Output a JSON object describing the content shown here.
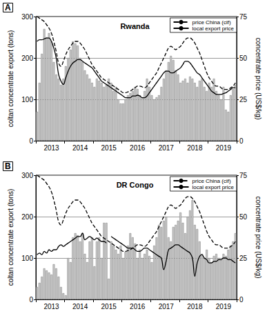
{
  "chart_data": [
    {
      "type": "bar",
      "title": "Rwanda",
      "annotations": [
        "A"
      ],
      "categories": [
        null,
        null,
        null,
        null,
        null,
        null,
        "2013",
        null,
        null,
        null,
        null,
        null,
        null,
        null,
        null,
        null,
        null,
        null,
        "2014",
        null,
        null,
        null,
        null,
        null,
        null,
        null,
        null,
        null,
        null,
        null,
        "2015",
        null,
        null,
        null,
        null,
        null,
        null,
        null,
        null,
        null,
        null,
        null,
        "2016",
        null,
        null,
        null,
        null,
        null,
        null,
        null,
        null,
        null,
        null,
        null,
        "2017",
        null,
        null,
        null,
        null,
        null,
        null,
        null,
        null,
        null,
        null,
        null,
        "2018",
        null,
        null,
        null,
        null,
        null,
        null,
        null,
        null,
        null,
        null,
        null,
        "2019",
        null,
        null,
        null,
        null,
        null
      ],
      "ylabel": "coltan concentrate export (tons)",
      "y2label": "concentrate price (US$/kg)",
      "ylim": [
        0,
        300
      ],
      "yticks": [
        0,
        100,
        200,
        300
      ],
      "y2lim": [
        0,
        75
      ],
      "y2ticks": [
        0,
        25,
        50,
        75
      ],
      "grid": true,
      "legend": "upper right",
      "series": [
        {
          "type": "bar",
          "color": "#c8c8c8",
          "values": [
            70,
            140,
            210,
            270,
            250,
            260,
            240,
            190,
            160,
            150,
            135,
            150,
            180,
            200,
            220,
            240,
            235,
            230,
            200,
            190,
            170,
            160,
            150,
            140,
            130,
            150,
            145,
            140,
            130,
            135,
            150,
            140,
            120,
            130,
            100,
            90,
            90,
            100,
            110,
            115,
            120,
            130,
            125,
            110,
            105,
            120,
            150,
            130,
            110,
            100,
            105,
            110,
            130,
            150,
            170,
            190,
            205,
            195,
            170,
            160,
            140,
            145,
            150,
            140,
            155,
            150,
            140,
            130,
            145,
            150,
            130,
            120,
            140,
            130,
            150,
            120,
            110,
            100,
            130,
            75,
            70,
            110,
            125,
            135
          ]
        },
        {
          "name": "price China (cif)",
          "type": "line",
          "axis": "y2",
          "line_style": "dashed",
          "color": "#000000",
          "values": [
            75,
            74,
            73,
            72,
            70,
            68,
            65,
            60,
            54,
            47,
            45,
            48,
            52,
            55,
            57,
            59,
            60,
            60,
            59,
            57,
            55,
            52,
            49,
            46,
            44,
            42,
            40,
            38,
            37,
            36,
            35,
            34,
            33,
            32,
            31,
            30,
            29,
            29,
            29.5,
            30,
            31,
            32,
            33,
            33,
            32.5,
            32,
            33,
            35,
            37,
            39,
            41,
            44,
            47,
            50,
            53,
            56,
            57,
            56,
            55,
            56,
            57,
            59,
            61,
            62,
            62,
            61,
            59,
            56,
            53,
            49,
            45,
            41,
            38,
            36,
            34,
            33,
            33,
            32,
            31,
            31,
            31,
            32,
            33,
            35
          ]
        },
        {
          "name": "local export price",
          "type": "line",
          "axis": "y2",
          "line_style": "solid",
          "color": "#000000",
          "values": [
            60,
            61,
            61,
            61.5,
            62,
            62,
            60,
            56,
            50,
            40,
            36,
            34,
            38,
            42,
            45,
            47,
            48,
            49,
            49,
            48,
            47,
            46,
            45,
            44,
            42,
            40,
            38,
            36,
            35,
            34,
            33,
            32,
            31,
            30,
            29,
            28,
            27,
            26,
            26,
            26,
            27,
            27,
            27.5,
            27,
            26,
            26,
            27,
            29,
            31,
            33,
            35,
            37,
            39,
            41,
            42,
            42,
            41,
            41,
            42,
            43,
            44,
            46,
            48,
            48,
            47,
            45,
            43,
            41,
            40,
            38,
            36,
            34,
            32,
            30,
            29,
            28,
            28,
            28,
            28.5,
            29,
            30,
            31,
            32,
            32
          ]
        }
      ]
    },
    {
      "type": "bar",
      "title": "DR Congo",
      "annotations": [
        "B"
      ],
      "categories": [
        null,
        null,
        null,
        null,
        null,
        null,
        "2013",
        null,
        null,
        null,
        null,
        null,
        null,
        null,
        null,
        null,
        null,
        null,
        "2014",
        null,
        null,
        null,
        null,
        null,
        null,
        null,
        null,
        null,
        null,
        null,
        "2015",
        null,
        null,
        null,
        null,
        null,
        null,
        null,
        null,
        null,
        null,
        null,
        "2016",
        null,
        null,
        null,
        null,
        null,
        null,
        null,
        null,
        null,
        null,
        null,
        "2017",
        null,
        null,
        null,
        null,
        null,
        null,
        null,
        null,
        null,
        null,
        null,
        "2018",
        null,
        null,
        null,
        null,
        null,
        null,
        null,
        null,
        null,
        null,
        null,
        "2019",
        null,
        null,
        null,
        null,
        null
      ],
      "ylabel": "coltan concentrate export (tons)",
      "y2label": "concentrate price (US$/kg)",
      "ylim": [
        0,
        300
      ],
      "yticks": [
        0,
        100,
        200,
        300
      ],
      "y2lim": [
        0,
        75
      ],
      "y2ticks": [
        0,
        25,
        50,
        75
      ],
      "grid": true,
      "legend": "upper right",
      "series": [
        {
          "type": "bar",
          "color": "#c8c8c8",
          "values": [
            30,
            40,
            55,
            75,
            70,
            65,
            60,
            85,
            75,
            55,
            30,
            15,
            10,
            100,
            90,
            150,
            160,
            155,
            140,
            160,
            110,
            90,
            140,
            150,
            80,
            140,
            150,
            100,
            185,
            185,
            50,
            140,
            130,
            120,
            110,
            130,
            100,
            115,
            130,
            160,
            150,
            135,
            100,
            120,
            100,
            110,
            120,
            105,
            90,
            130,
            150,
            180,
            175,
            190,
            200,
            150,
            140,
            175,
            180,
            190,
            210,
            185,
            160,
            200,
            215,
            240,
            180,
            170,
            140,
            110,
            100,
            120,
            100,
            90,
            105,
            110,
            100,
            95,
            110,
            105,
            120,
            130,
            140,
            160
          ]
        },
        {
          "name": "price China (cif)",
          "type": "line",
          "axis": "y2",
          "line_style": "dashed",
          "color": "#000000",
          "values": [
            75,
            74,
            73,
            72,
            70,
            68,
            65,
            60,
            54,
            47,
            45,
            48,
            52,
            55,
            57,
            59,
            60,
            60,
            59,
            57,
            55,
            52,
            49,
            46,
            44,
            42,
            40,
            38,
            37,
            36,
            35,
            34,
            33,
            32,
            31,
            30,
            29,
            29,
            29.5,
            30,
            31,
            32,
            33,
            33,
            32.5,
            32,
            33,
            35,
            37,
            39,
            41,
            44,
            47,
            50,
            53,
            56,
            57,
            56,
            55,
            56,
            57,
            59,
            61,
            62,
            62,
            61,
            59,
            56,
            53,
            49,
            45,
            41,
            38,
            36,
            34,
            33,
            33,
            32,
            31,
            31,
            31,
            32,
            33,
            35
          ]
        },
        {
          "name": "local export price",
          "type": "line",
          "axis": "y2",
          "line_style": "solid",
          "color": "#000000",
          "values": [
            27,
            28,
            27,
            29,
            28,
            30,
            29,
            30,
            30,
            32,
            33,
            32,
            33,
            34,
            35,
            36,
            37,
            38,
            38,
            40,
            36,
            37,
            38,
            37,
            36,
            37,
            36,
            35,
            35,
            34,
            null,
            38,
            37,
            36,
            35,
            34,
            33,
            32,
            31,
            31,
            31,
            30,
            29,
            29,
            30,
            31,
            31,
            30,
            29,
            28,
            27,
            26,
            25,
            18,
            23,
            30,
            31,
            32,
            33,
            33,
            32,
            31,
            30,
            29,
            28,
            25,
            14,
            22,
            26,
            27,
            25,
            24,
            22,
            22,
            23,
            23,
            24,
            24,
            25,
            25,
            24,
            24,
            23,
            22
          ]
        }
      ]
    }
  ]
}
